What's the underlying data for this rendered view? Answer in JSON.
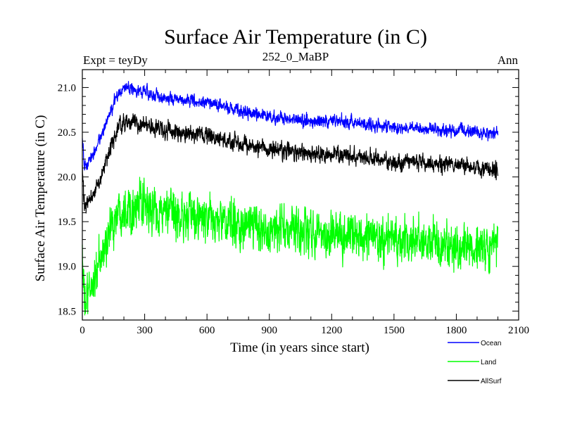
{
  "chart_data": {
    "type": "line",
    "title": "Surface Air Temperature (in C)",
    "subtitle_left": "Expt = teyDy",
    "subtitle_center": "252_0_MaBP",
    "subtitle_right": "Ann",
    "xlabel": "Time (in years since start)",
    "ylabel": "Surface Air Temperature (in C)",
    "xlim": [
      0,
      2100
    ],
    "ylim": [
      18.4,
      21.2
    ],
    "xticks": [
      0,
      300,
      600,
      900,
      1200,
      1500,
      1800,
      2100
    ],
    "xtick_labels": [
      "0",
      "300",
      "600",
      "900",
      "1200",
      "1500",
      "1800",
      "2100"
    ],
    "yticks": [
      18.5,
      19.0,
      19.5,
      20.0,
      20.5,
      21.0
    ],
    "ytick_labels": [
      "18.5",
      "19.0",
      "19.5",
      "20.0",
      "20.5",
      "21.0"
    ],
    "x_step": 1,
    "x_max": 2000,
    "series": [
      {
        "name": "Ocean",
        "color": "#0000ff",
        "noise": 0.045,
        "anchors": [
          [
            0,
            20.45
          ],
          [
            10,
            20.1
          ],
          [
            30,
            20.15
          ],
          [
            80,
            20.4
          ],
          [
            140,
            20.75
          ],
          [
            180,
            20.97
          ],
          [
            220,
            21.0
          ],
          [
            300,
            20.95
          ],
          [
            400,
            20.88
          ],
          [
            500,
            20.86
          ],
          [
            600,
            20.83
          ],
          [
            700,
            20.78
          ],
          [
            800,
            20.72
          ],
          [
            900,
            20.67
          ],
          [
            1000,
            20.64
          ],
          [
            1100,
            20.62
          ],
          [
            1200,
            20.63
          ],
          [
            1300,
            20.61
          ],
          [
            1400,
            20.58
          ],
          [
            1500,
            20.55
          ],
          [
            1600,
            20.55
          ],
          [
            1700,
            20.53
          ],
          [
            1800,
            20.52
          ],
          [
            1900,
            20.5
          ],
          [
            2000,
            20.48
          ]
        ]
      },
      {
        "name": "Land",
        "color": "#00ff00",
        "noise": 0.17,
        "anchors": [
          [
            0,
            19.2
          ],
          [
            10,
            18.55
          ],
          [
            40,
            18.75
          ],
          [
            80,
            19.0
          ],
          [
            140,
            19.45
          ],
          [
            180,
            19.65
          ],
          [
            220,
            19.68
          ],
          [
            300,
            19.65
          ],
          [
            400,
            19.6
          ],
          [
            500,
            19.55
          ],
          [
            600,
            19.52
          ],
          [
            700,
            19.48
          ],
          [
            800,
            19.45
          ],
          [
            900,
            19.42
          ],
          [
            1000,
            19.4
          ],
          [
            1100,
            19.38
          ],
          [
            1200,
            19.37
          ],
          [
            1300,
            19.35
          ],
          [
            1400,
            19.32
          ],
          [
            1500,
            19.3
          ],
          [
            1600,
            19.27
          ],
          [
            1700,
            19.25
          ],
          [
            1800,
            19.22
          ],
          [
            1900,
            19.2
          ],
          [
            2000,
            19.18
          ]
        ]
      },
      {
        "name": "AllSurf",
        "color": "#000000",
        "noise": 0.06,
        "anchors": [
          [
            0,
            20.1
          ],
          [
            10,
            19.65
          ],
          [
            30,
            19.7
          ],
          [
            80,
            19.95
          ],
          [
            140,
            20.35
          ],
          [
            180,
            20.58
          ],
          [
            220,
            20.62
          ],
          [
            300,
            20.58
          ],
          [
            400,
            20.52
          ],
          [
            500,
            20.48
          ],
          [
            600,
            20.45
          ],
          [
            700,
            20.4
          ],
          [
            800,
            20.35
          ],
          [
            900,
            20.31
          ],
          [
            1000,
            20.28
          ],
          [
            1100,
            20.26
          ],
          [
            1200,
            20.25
          ],
          [
            1300,
            20.23
          ],
          [
            1400,
            20.2
          ],
          [
            1500,
            20.17
          ],
          [
            1600,
            20.16
          ],
          [
            1700,
            20.15
          ],
          [
            1800,
            20.13
          ],
          [
            1900,
            20.1
          ],
          [
            2000,
            20.08
          ]
        ]
      }
    ],
    "legend": [
      "Ocean",
      "Land",
      "AllSurf"
    ]
  }
}
